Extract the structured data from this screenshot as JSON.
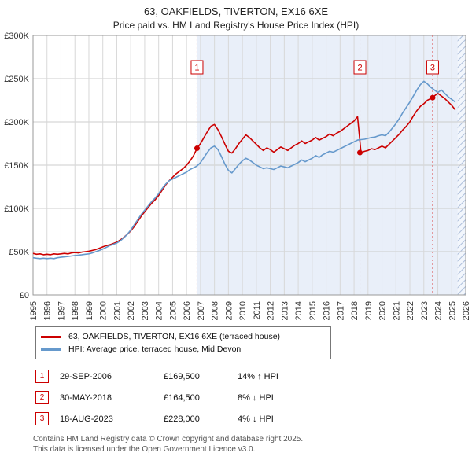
{
  "title": "63, OAKFIELDS, TIVERTON, EX16 6XE",
  "subtitle": "Price paid vs. HM Land Registry's House Price Index (HPI)",
  "chart_data": {
    "type": "line",
    "title": "63, OAKFIELDS, TIVERTON, EX16 6XE — Price paid vs. HPI",
    "xlabel": "",
    "ylabel": "",
    "x_range": [
      1995,
      2026
    ],
    "y_max_k": 300,
    "y_tick_step_k": 50,
    "y_ticks": [
      "£0",
      "£50K",
      "£100K",
      "£150K",
      "£200K",
      "£250K",
      "£300K"
    ],
    "x_ticks": [
      "1995",
      "1996",
      "1997",
      "1998",
      "1999",
      "2000",
      "2001",
      "2002",
      "2003",
      "2004",
      "2005",
      "2006",
      "2007",
      "2008",
      "2009",
      "2010",
      "2011",
      "2012",
      "2013",
      "2014",
      "2015",
      "2016",
      "2017",
      "2018",
      "2019",
      "2020",
      "2021",
      "2022",
      "2023",
      "2024",
      "2025",
      "2026"
    ],
    "x_start": 1995,
    "x_step": 0.25,
    "shade_from": 2006.75,
    "hatch_from": 2025.42,
    "shade_color": "#e9eff9",
    "grid_color": "#d8d8d8",
    "series": [
      {
        "name": "63, OAKFIELDS, TIVERTON, EX16 6XE (terraced house)",
        "color": "#cc0000",
        "values_k": [
          48,
          47,
          47.5,
          46.5,
          47,
          46.5,
          47.5,
          47,
          47.5,
          48,
          47.5,
          48.5,
          49,
          48.5,
          49.5,
          50,
          50.5,
          51.5,
          52.5,
          54,
          55.5,
          57,
          58,
          59.5,
          61,
          63.5,
          66.5,
          70,
          74,
          79,
          85,
          91,
          96,
          101,
          106,
          110,
          115,
          121,
          127,
          132,
          136,
          140,
          143,
          146,
          150,
          155,
          161,
          169.5,
          175,
          182,
          189,
          195,
          197,
          191,
          183,
          174,
          166,
          164,
          169,
          175,
          180,
          185,
          182,
          178,
          174,
          170,
          167,
          170,
          168,
          165,
          168,
          171,
          169,
          167,
          170,
          173,
          175,
          178,
          175,
          177,
          179,
          182,
          179,
          181,
          183,
          186,
          184,
          187,
          189,
          192,
          195,
          198,
          201,
          206,
          164.5,
          166,
          167,
          169,
          168,
          170,
          172,
          170,
          174,
          178,
          182,
          186,
          191,
          195,
          200,
          207,
          213,
          218,
          221,
          225,
          227,
          230,
          233,
          230,
          227,
          223,
          219,
          214
        ]
      },
      {
        "name": "HPI: Average price, terraced house, Mid Devon",
        "color": "#6699cc",
        "values_k": [
          43,
          42.5,
          42,
          42.5,
          42,
          42.5,
          42,
          43,
          43.5,
          44,
          44.5,
          45,
          45.5,
          46,
          46.5,
          47,
          47.5,
          48.5,
          50,
          51.5,
          53,
          55,
          57,
          58.5,
          60,
          62.5,
          66,
          70,
          75,
          81,
          87,
          93,
          98,
          103,
          108,
          112,
          117,
          123,
          128,
          132,
          134,
          136,
          138,
          140,
          142,
          145,
          147,
          149,
          153,
          159,
          165,
          170,
          172,
          168,
          160,
          151,
          144,
          141,
          146,
          151,
          155,
          158,
          156,
          153,
          150,
          148,
          146,
          147,
          146,
          145,
          147,
          149,
          148,
          147,
          149,
          151,
          153,
          156,
          154,
          156,
          158,
          161,
          159,
          162,
          164,
          166,
          165,
          167,
          169,
          171,
          173,
          175,
          177,
          179,
          179.5,
          180,
          181,
          182,
          182.5,
          184,
          185,
          184,
          188,
          193,
          198,
          204,
          211,
          217,
          223,
          230,
          237,
          243,
          247,
          244,
          240,
          237,
          234,
          237,
          233,
          229,
          226,
          223
        ]
      }
    ],
    "sales": [
      {
        "n": "1",
        "x": 2006.75,
        "price_k": 169.5
      },
      {
        "n": "2",
        "x": 2018.42,
        "price_k": 164.5
      },
      {
        "n": "3",
        "x": 2023.63,
        "price_k": 228
      }
    ]
  },
  "legend": {
    "items": [
      {
        "label": "63, OAKFIELDS, TIVERTON, EX16 6XE (terraced house)",
        "color": "#cc0000"
      },
      {
        "label": "HPI: Average price, terraced house, Mid Devon",
        "color": "#6699cc"
      }
    ]
  },
  "transactions": [
    {
      "num": "1",
      "date": "29-SEP-2006",
      "price": "£169,500",
      "hpi": "14% ↑ HPI"
    },
    {
      "num": "2",
      "date": "30-MAY-2018",
      "price": "£164,500",
      "hpi": "8% ↓ HPI"
    },
    {
      "num": "3",
      "date": "18-AUG-2023",
      "price": "£228,000",
      "hpi": "4% ↓ HPI"
    }
  ],
  "footer": {
    "line1": "Contains HM Land Registry data © Crown copyright and database right 2025.",
    "line2": "This data is licensed under the Open Government Licence v3.0."
  }
}
